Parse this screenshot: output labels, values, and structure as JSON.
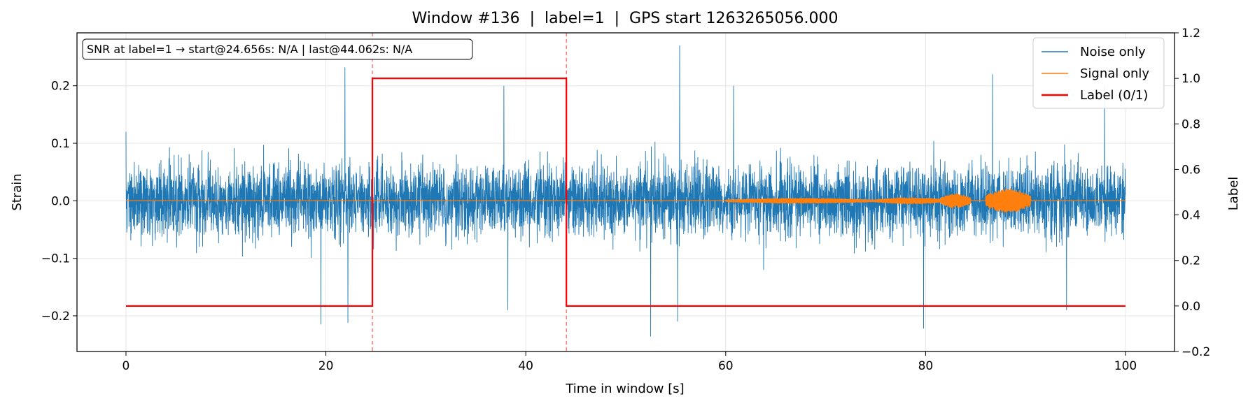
{
  "chart_data": {
    "type": "line",
    "title": "Window #136  |  label=1  |  GPS start 1263265056.000",
    "xlabel": "Time in window [s]",
    "ylabel": "Strain",
    "y2label": "Label",
    "xlim": [
      -4.9,
      104.9
    ],
    "ylim": [
      -0.262,
      0.292
    ],
    "y2lim": [
      -0.2,
      1.2
    ],
    "xticks": [
      0,
      20,
      40,
      60,
      80,
      100
    ],
    "yticks": [
      -0.2,
      -0.1,
      0.0,
      0.1,
      0.2
    ],
    "y2ticks": [
      -0.2,
      0.0,
      0.2,
      0.4,
      0.6,
      0.8,
      1.0,
      1.2
    ],
    "xtick_labels": [
      "0",
      "20",
      "40",
      "60",
      "80",
      "100"
    ],
    "ytick_labels": [
      "−0.2",
      "−0.1",
      "0.0",
      "0.1",
      "0.2"
    ],
    "y2tick_labels": [
      "−0.2",
      "0.0",
      "0.2",
      "0.4",
      "0.6",
      "0.8",
      "1.0",
      "1.2"
    ],
    "grid": true,
    "legend_position": "top-right",
    "annotation": "SNR at label=1 → start@24.656s: N/A | last@44.062s: N/A",
    "series": [
      {
        "name": "Noise only",
        "color": "#1f77b4",
        "axis": "left",
        "kind": "noise",
        "x_range": [
          0,
          100
        ],
        "typical_envelope": 0.1,
        "peaks": [
          {
            "x": 0.0,
            "y": 0.12
          },
          {
            "x": 19.5,
            "y": -0.215
          },
          {
            "x": 21.9,
            "y": 0.232
          },
          {
            "x": 22.2,
            "y": -0.212
          },
          {
            "x": 37.8,
            "y": 0.2
          },
          {
            "x": 38.2,
            "y": -0.19
          },
          {
            "x": 52.5,
            "y": -0.236
          },
          {
            "x": 55.4,
            "y": 0.27
          },
          {
            "x": 55.2,
            "y": -0.21
          },
          {
            "x": 60.8,
            "y": 0.2
          },
          {
            "x": 79.8,
            "y": -0.222
          },
          {
            "x": 86.7,
            "y": 0.22
          },
          {
            "x": 94.1,
            "y": -0.19
          },
          {
            "x": 97.9,
            "y": 0.2
          }
        ]
      },
      {
        "name": "Signal only",
        "color": "#ff7f0e",
        "axis": "left",
        "kind": "chirp",
        "x_range": [
          0,
          100
        ],
        "bursts": [
          {
            "x_start": 60,
            "x_end": 75,
            "amplitude": 0.005
          },
          {
            "x_start": 75,
            "x_end": 82,
            "amplitude": 0.006
          },
          {
            "x_start": 81.5,
            "x_end": 84.5,
            "amplitude": 0.013
          },
          {
            "x_start": 86,
            "x_end": 90.5,
            "amplitude": 0.022
          }
        ]
      },
      {
        "name": "Label (0/1)",
        "color": "#ff0000",
        "axis": "right",
        "kind": "step",
        "x": [
          0,
          24.656,
          24.656,
          44.062,
          44.062,
          100
        ],
        "y": [
          0,
          0,
          1,
          1,
          0,
          0
        ]
      }
    ],
    "vlines": [
      {
        "x": 24.656,
        "color": "#ff0000",
        "style": "dashed"
      },
      {
        "x": 44.062,
        "color": "#ff0000",
        "style": "dashed"
      }
    ]
  }
}
